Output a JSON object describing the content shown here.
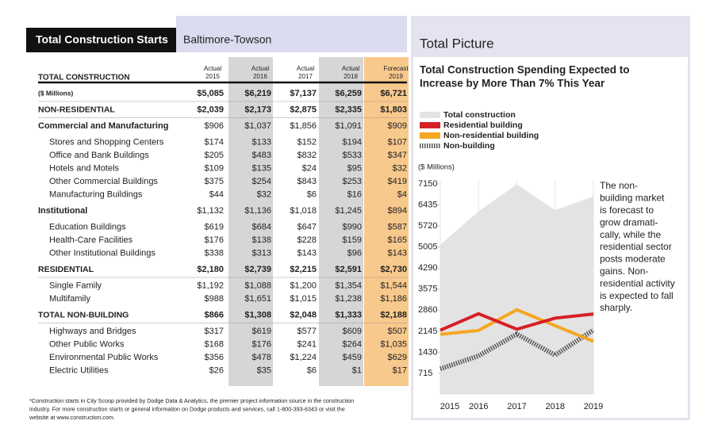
{
  "header": {
    "title": "Total Construction Starts",
    "region": "Baltimore-Towson"
  },
  "table": {
    "title": "TOTAL CONSTRUCTION",
    "columns": [
      {
        "kind": "Actual",
        "year": "2015"
      },
      {
        "kind": "Actual",
        "year": "2016",
        "color": "#d6d6d6"
      },
      {
        "kind": "Actual",
        "year": "2017"
      },
      {
        "kind": "Actual",
        "year": "2018",
        "color": "#d6d6d6"
      },
      {
        "kind": "Forecast",
        "year": "2019",
        "color": "#f8c98c"
      }
    ],
    "rows": [
      {
        "label": "($ Millions)",
        "style": "total",
        "values": [
          "$5,085",
          "$6,219",
          "$7,137",
          "$6,259",
          "$6,721"
        ]
      },
      {
        "label": "NON-RESIDENTIAL",
        "style": "section",
        "values": [
          "$2,039",
          "$2,173",
          "$2,875",
          "$2,335",
          "$1,803"
        ]
      },
      {
        "label": "Commercial and Manufacturing",
        "style": "group",
        "values": [
          "$906",
          "$1,037",
          "$1,856",
          "$1,091",
          "$909"
        ]
      },
      {
        "label": "Stores and Shopping Centers",
        "style": "item",
        "values": [
          "$174",
          "$133",
          "$152",
          "$194",
          "$107"
        ]
      },
      {
        "label": "Office and Bank Buildings",
        "style": "item",
        "values": [
          "$205",
          "$483",
          "$832",
          "$533",
          "$347"
        ]
      },
      {
        "label": "Hotels and Motels",
        "style": "item",
        "values": [
          "$109",
          "$135",
          "$24",
          "$95",
          "$32"
        ]
      },
      {
        "label": "Other Commercial Buildings",
        "style": "item",
        "values": [
          "$375",
          "$254",
          "$843",
          "$253",
          "$419"
        ]
      },
      {
        "label": "Manufacturing Buildings",
        "style": "item",
        "values": [
          "$44",
          "$32",
          "$6",
          "$16",
          "$4"
        ]
      },
      {
        "label": "Institutional",
        "style": "group",
        "values": [
          "$1,132",
          "$1,136",
          "$1,018",
          "$1,245",
          "$894"
        ]
      },
      {
        "label": "Education Buildings",
        "style": "item",
        "values": [
          "$619",
          "$684",
          "$647",
          "$990",
          "$587"
        ]
      },
      {
        "label": "Health-Care Facilities",
        "style": "item",
        "values": [
          "$176",
          "$138",
          "$228",
          "$159",
          "$165"
        ]
      },
      {
        "label": "Other Institutional Buildings",
        "style": "item",
        "values": [
          "$338",
          "$313",
          "$143",
          "$96",
          "$143"
        ]
      },
      {
        "label": "RESIDENTIAL",
        "style": "section",
        "values": [
          "$2,180",
          "$2,739",
          "$2,215",
          "$2,591",
          "$2,730"
        ]
      },
      {
        "label": "Single Family",
        "style": "item",
        "values": [
          "$1,192",
          "$1,088",
          "$1,200",
          "$1,354",
          "$1,544"
        ]
      },
      {
        "label": "Multifamily",
        "style": "item",
        "values": [
          "$988",
          "$1,651",
          "$1,015",
          "$1,238",
          "$1,186"
        ]
      },
      {
        "label": "TOTAL NON-BUILDING",
        "style": "section",
        "values": [
          "$866",
          "$1,308",
          "$2,048",
          "$1,333",
          "$2,188"
        ]
      },
      {
        "label": "Highways and Bridges",
        "style": "item",
        "values": [
          "$317",
          "$619",
          "$577",
          "$609",
          "$507"
        ]
      },
      {
        "label": "Other Public Works",
        "style": "item",
        "values": [
          "$168",
          "$176",
          "$241",
          "$264",
          "$1,035"
        ]
      },
      {
        "label": "Environmental Public Works",
        "style": "item",
        "values": [
          "$356",
          "$478",
          "$1,224",
          "$459",
          "$629"
        ]
      },
      {
        "label": "Electric Utilities",
        "style": "item",
        "values": [
          "$26",
          "$35",
          "$6",
          "$1",
          "$17"
        ]
      }
    ],
    "footnote": [
      "*Construction starts in City Scoop provided by Dodge Data & Analytics, the premier project information source in the construction",
      "industry. For more construction starts or general information on Dodge products and services, call 1-800-393-6343 or visit the",
      "website at www.construction.com."
    ]
  },
  "chart_data": {
    "type": "line",
    "panel_title": "Total Picture",
    "title": [
      "Total Construction Spending Expected to",
      "Increase by More Than 7% This Year"
    ],
    "y_label": "($ Millions)",
    "categories": [
      "2015",
      "2016",
      "2017",
      "2018",
      "2019"
    ],
    "series": [
      {
        "name": "Total construction",
        "color": "#e3e3e3",
        "style": "area",
        "values": [
          5085,
          6219,
          7137,
          6259,
          6721
        ]
      },
      {
        "name": "Residential building",
        "color": "#d71f26",
        "style": "line",
        "values": [
          2180,
          2739,
          2215,
          2591,
          2730
        ]
      },
      {
        "name": "Non-residential building",
        "color": "#f5a623",
        "style": "line",
        "values": [
          2039,
          2173,
          2875,
          2335,
          1803
        ]
      },
      {
        "name": "Non-building",
        "color": "#555555",
        "style": "hatched",
        "values": [
          866,
          1308,
          2048,
          1333,
          2188
        ]
      }
    ],
    "ylim": [
      0,
      7150
    ],
    "yticks": [
      715,
      1430,
      2145,
      2860,
      3575,
      4290,
      5005,
      5720,
      6435,
      7150
    ],
    "annotation": [
      "The non-",
      "building market",
      "is forecast to",
      "grow dramati-",
      "cally, while the",
      "residential sector",
      "posts moderate",
      "gains. Non-",
      "residential activity",
      "is expected to fall",
      "sharply."
    ]
  }
}
